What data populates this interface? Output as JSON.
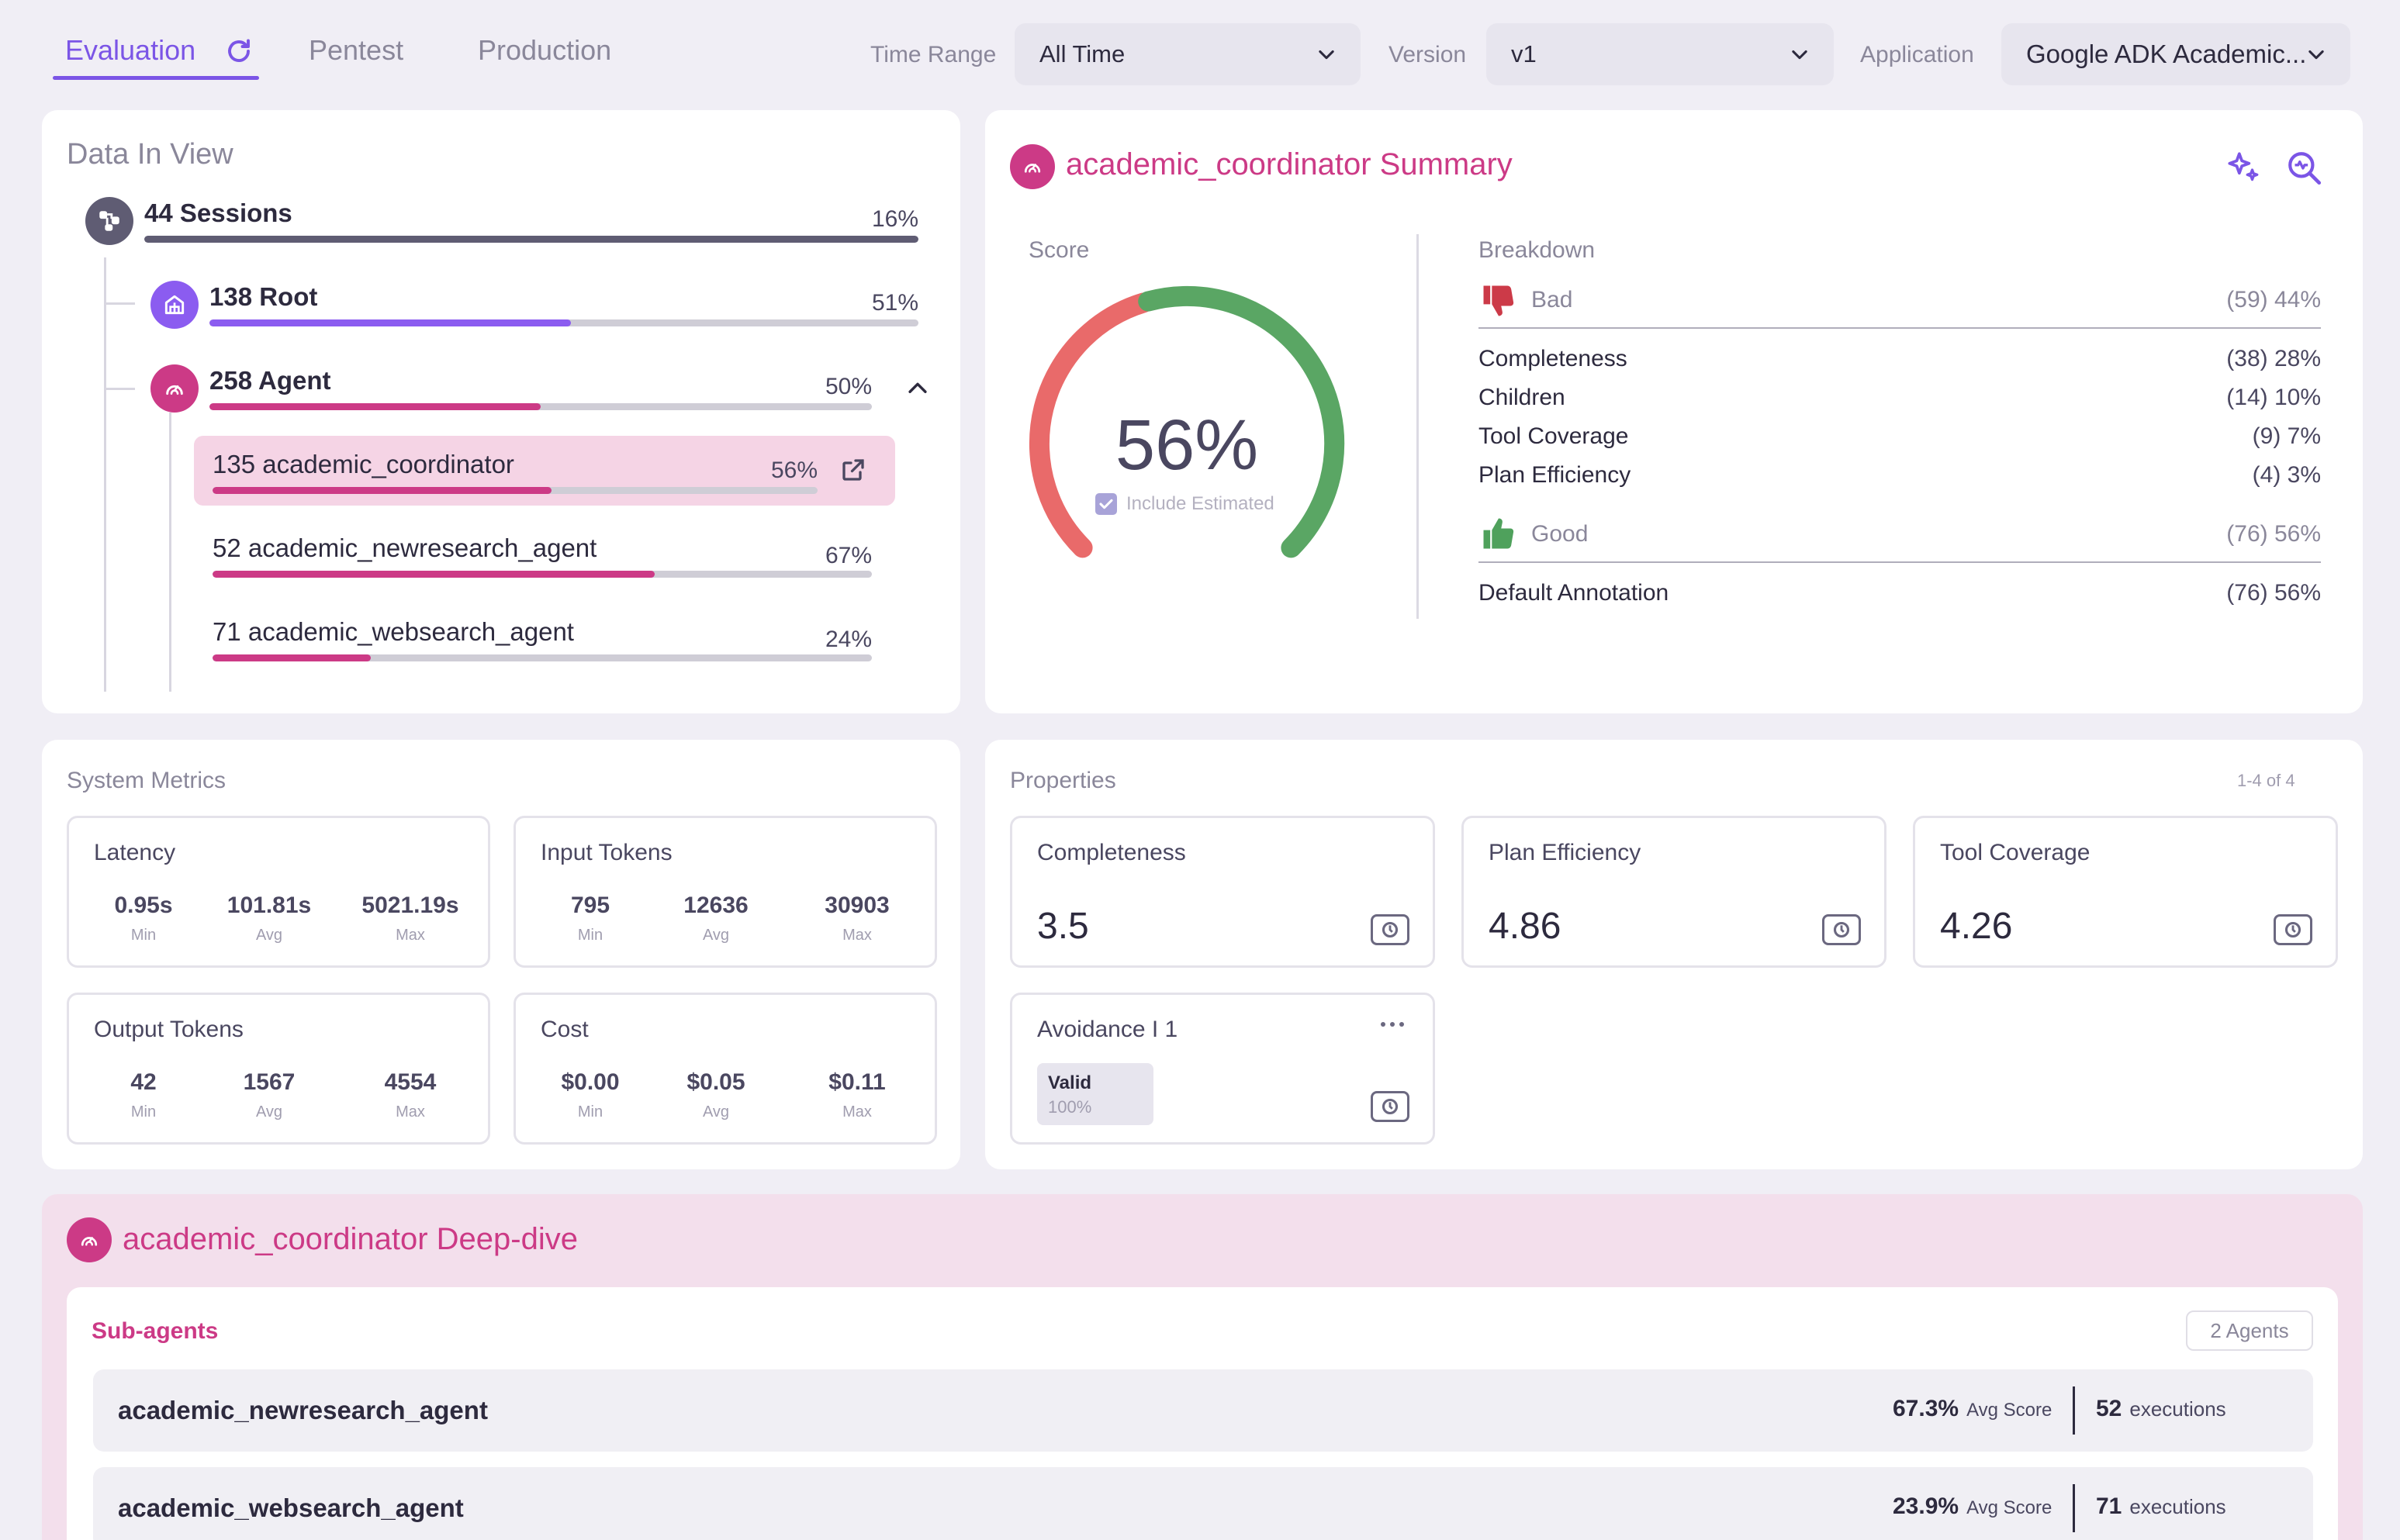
{
  "tabs": [
    {
      "label": "Evaluation",
      "active": true
    },
    {
      "label": "Pentest",
      "active": false
    },
    {
      "label": "Production",
      "active": false
    }
  ],
  "filters": {
    "time_range": {
      "label": "Time Range",
      "value": "All Time"
    },
    "version": {
      "label": "Version",
      "value": "v1"
    },
    "application": {
      "label": "Application",
      "value": "Google ADK Academic..."
    }
  },
  "data_in_view": {
    "title": "Data In View",
    "sessions": {
      "label": "44 Sessions",
      "pct": "16%",
      "fill": 1.0
    },
    "root": {
      "label": "138 Root",
      "pct": "51%",
      "fill": 0.51
    },
    "agent": {
      "label": "258 Agent",
      "pct": "50%",
      "fill": 0.5
    },
    "agents": [
      {
        "label": "135 academic_coordinator",
        "pct": "56%",
        "fill": 0.56,
        "selected": true
      },
      {
        "label": "52 academic_newresearch_agent",
        "pct": "67%",
        "fill": 0.67,
        "selected": false
      },
      {
        "label": "71 academic_websearch_agent",
        "pct": "24%",
        "fill": 0.24,
        "selected": false
      }
    ]
  },
  "summary": {
    "title": "academic_coordinator Summary",
    "score_label": "Score",
    "score_value": "56%",
    "score_fraction": 0.56,
    "include_estimated": "Include Estimated",
    "breakdown_label": "Breakdown",
    "bad": {
      "label": "Bad",
      "value": "(59) 44%"
    },
    "bad_items": [
      {
        "label": "Completeness",
        "value": "(38) 28%"
      },
      {
        "label": "Children",
        "value": "(14) 10%"
      },
      {
        "label": "Tool Coverage",
        "value": "(9) 7%"
      },
      {
        "label": "Plan Efficiency",
        "value": "(4) 3%"
      }
    ],
    "good": {
      "label": "Good",
      "value": "(76) 56%"
    },
    "good_items": [
      {
        "label": "Default Annotation",
        "value": "(76) 56%"
      }
    ]
  },
  "system_metrics": {
    "title": "System Metrics",
    "boxes": [
      {
        "title": "Latency",
        "stats": [
          {
            "v": "0.95s",
            "l": "Min"
          },
          {
            "v": "101.81s",
            "l": "Avg"
          },
          {
            "v": "5021.19s",
            "l": "Max"
          }
        ]
      },
      {
        "title": "Input Tokens",
        "stats": [
          {
            "v": "795",
            "l": "Min"
          },
          {
            "v": "12636",
            "l": "Avg"
          },
          {
            "v": "30903",
            "l": "Max"
          }
        ]
      },
      {
        "title": "Output Tokens",
        "stats": [
          {
            "v": "42",
            "l": "Min"
          },
          {
            "v": "1567",
            "l": "Avg"
          },
          {
            "v": "4554",
            "l": "Max"
          }
        ]
      },
      {
        "title": "Cost",
        "stats": [
          {
            "v": "$0.00",
            "l": "Min"
          },
          {
            "v": "$0.05",
            "l": "Avg"
          },
          {
            "v": "$0.11",
            "l": "Max"
          }
        ]
      }
    ]
  },
  "properties": {
    "title": "Properties",
    "range": "1-4 of 4",
    "items": [
      {
        "title": "Completeness",
        "value": "3.5"
      },
      {
        "title": "Plan Efficiency",
        "value": "4.86"
      },
      {
        "title": "Tool Coverage",
        "value": "4.26"
      }
    ],
    "avoidance": {
      "title": "Avoidance I 1",
      "badge_label": "Valid",
      "badge_value": "100%"
    }
  },
  "deep_dive": {
    "title": "academic_coordinator Deep-dive",
    "subagents_label": "Sub-agents",
    "agents_count": "2 Agents",
    "rows": [
      {
        "name": "academic_newresearch_agent",
        "score": "67.3%",
        "score_label": "Avg Score",
        "executions": "52",
        "executions_label": "executions"
      },
      {
        "name": "academic_websearch_agent",
        "score": "23.9%",
        "score_label": "Avg Score",
        "executions": "71",
        "executions_label": "executions"
      }
    ]
  },
  "colors": {
    "accent": "#7b55e6",
    "pink": "#cc3a86",
    "bad": "#e96a6a",
    "good": "#5aa664"
  }
}
